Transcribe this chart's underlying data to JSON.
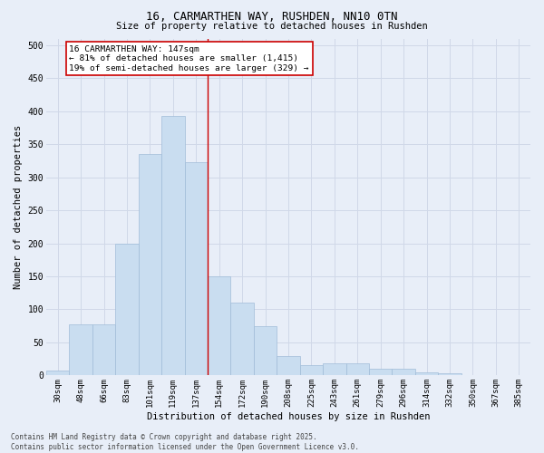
{
  "title1": "16, CARMARTHEN WAY, RUSHDEN, NN10 0TN",
  "title2": "Size of property relative to detached houses in Rushden",
  "xlabel": "Distribution of detached houses by size in Rushden",
  "ylabel": "Number of detached properties",
  "categories": [
    "30sqm",
    "48sqm",
    "66sqm",
    "83sqm",
    "101sqm",
    "119sqm",
    "137sqm",
    "154sqm",
    "172sqm",
    "190sqm",
    "208sqm",
    "225sqm",
    "243sqm",
    "261sqm",
    "279sqm",
    "296sqm",
    "314sqm",
    "332sqm",
    "350sqm",
    "367sqm",
    "385sqm"
  ],
  "values": [
    7,
    78,
    78,
    200,
    335,
    393,
    323,
    150,
    110,
    75,
    30,
    15,
    18,
    18,
    10,
    10,
    5,
    3,
    1,
    0,
    1
  ],
  "bar_color": "#c9ddf0",
  "bar_edge_color": "#a0bcd8",
  "grid_color": "#d0d8e8",
  "background_color": "#e8eef8",
  "vline_bin_index": 7,
  "vline_color": "#cc0000",
  "annotation_text": "16 CARMARTHEN WAY: 147sqm\n← 81% of detached houses are smaller (1,415)\n19% of semi-detached houses are larger (329) →",
  "annotation_box_color": "#ffffff",
  "annotation_box_edge": "#cc0000",
  "footer_text": "Contains HM Land Registry data © Crown copyright and database right 2025.\nContains public sector information licensed under the Open Government Licence v3.0.",
  "ylim": [
    0,
    510
  ],
  "yticks": [
    0,
    50,
    100,
    150,
    200,
    250,
    300,
    350,
    400,
    450,
    500
  ]
}
